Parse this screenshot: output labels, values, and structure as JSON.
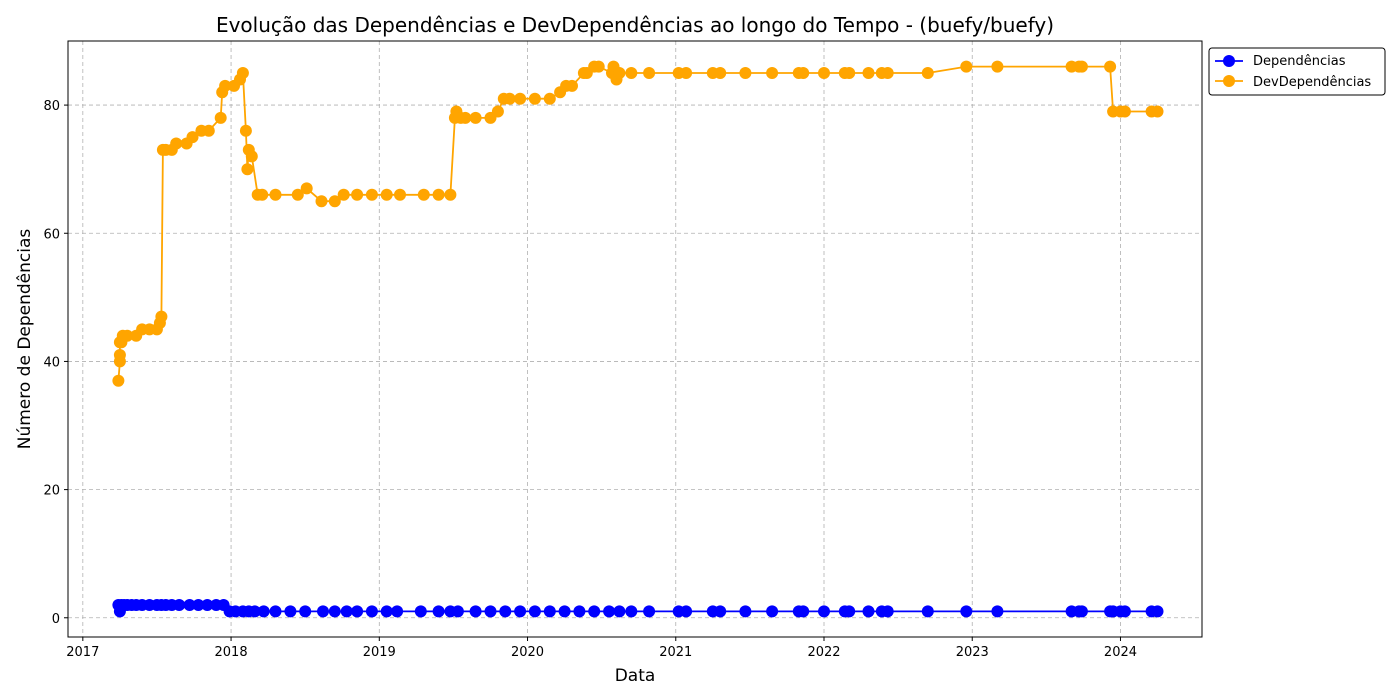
{
  "chart_data": {
    "type": "line",
    "title": "Evolução das Dependências e DevDependências ao longo do Tempo - (buefy/buefy)",
    "xlabel": "Data",
    "ylabel": "Número de Dependências",
    "xlim": [
      2016.9,
      2024.55
    ],
    "ylim": [
      -3,
      90
    ],
    "xticks": [
      2017,
      2018,
      2019,
      2020,
      2021,
      2022,
      2023,
      2024
    ],
    "yticks": [
      0,
      20,
      40,
      60,
      80
    ],
    "grid": true,
    "legend_position": "top-right",
    "series": [
      {
        "name": "Dependências",
        "color": "#0000ff",
        "x": [
          2017.24,
          2017.25,
          2017.26,
          2017.28,
          2017.3,
          2017.33,
          2017.36,
          2017.4,
          2017.45,
          2017.5,
          2017.53,
          2017.56,
          2017.6,
          2017.65,
          2017.72,
          2017.78,
          2017.84,
          2017.9,
          2017.95,
          2017.99,
          2018.03,
          2018.08,
          2018.12,
          2018.16,
          2018.22,
          2018.3,
          2018.4,
          2018.5,
          2018.62,
          2018.7,
          2018.78,
          2018.85,
          2018.95,
          2019.05,
          2019.12,
          2019.28,
          2019.4,
          2019.48,
          2019.53,
          2019.65,
          2019.75,
          2019.85,
          2019.95,
          2020.05,
          2020.15,
          2020.25,
          2020.35,
          2020.45,
          2020.55,
          2020.62,
          2020.7,
          2020.82,
          2021.02,
          2021.07,
          2021.25,
          2021.3,
          2021.47,
          2021.65,
          2021.83,
          2021.86,
          2022.0,
          2022.14,
          2022.17,
          2022.3,
          2022.39,
          2022.43,
          2022.7,
          2022.96,
          2023.17,
          2023.67,
          2023.72,
          2023.74,
          2023.93,
          2023.95,
          2024.0,
          2024.03,
          2024.21,
          2024.25
        ],
        "y": [
          2,
          1,
          2,
          2,
          2,
          2,
          2,
          2,
          2,
          2,
          2,
          2,
          2,
          2,
          2,
          2,
          2,
          2,
          2,
          1,
          1,
          1,
          1,
          1,
          1,
          1,
          1,
          1,
          1,
          1,
          1,
          1,
          1,
          1,
          1,
          1,
          1,
          1,
          1,
          1,
          1,
          1,
          1,
          1,
          1,
          1,
          1,
          1,
          1,
          1,
          1,
          1,
          1,
          1,
          1,
          1,
          1,
          1,
          1,
          1,
          1,
          1,
          1,
          1,
          1,
          1,
          1,
          1,
          1,
          1,
          1,
          1,
          1,
          1,
          1,
          1,
          1,
          1
        ]
      },
      {
        "name": "DevDependências",
        "color": "#ffa500",
        "x": [
          2017.24,
          2017.25,
          2017.25,
          2017.25,
          2017.26,
          2017.27,
          2017.3,
          2017.36,
          2017.4,
          2017.45,
          2017.5,
          2017.52,
          2017.53,
          2017.54,
          2017.56,
          2017.6,
          2017.63,
          2017.7,
          2017.74,
          2017.8,
          2017.85,
          2017.93,
          2017.94,
          2017.96,
          2018.02,
          2018.06,
          2018.08,
          2018.1,
          2018.11,
          2018.12,
          2018.14,
          2018.18,
          2018.21,
          2018.3,
          2018.45,
          2018.51,
          2018.61,
          2018.7,
          2018.76,
          2018.85,
          2018.95,
          2019.05,
          2019.14,
          2019.3,
          2019.4,
          2019.48,
          2019.51,
          2019.52,
          2019.55,
          2019.58,
          2019.65,
          2019.75,
          2019.8,
          2019.84,
          2019.88,
          2019.95,
          2020.05,
          2020.15,
          2020.22,
          2020.26,
          2020.3,
          2020.38,
          2020.4,
          2020.45,
          2020.48,
          2020.57,
          2020.58,
          2020.6,
          2020.62,
          2020.7,
          2020.82,
          2021.02,
          2021.07,
          2021.25,
          2021.3,
          2021.47,
          2021.65,
          2021.83,
          2021.86,
          2022.0,
          2022.14,
          2022.17,
          2022.3,
          2022.39,
          2022.43,
          2022.7,
          2022.96,
          2023.17,
          2023.67,
          2023.72,
          2023.74,
          2023.93,
          2023.95,
          2024.0,
          2024.03,
          2024.21,
          2024.25
        ],
        "y": [
          37,
          40,
          41,
          43,
          43,
          44,
          44,
          44,
          45,
          45,
          45,
          46,
          47,
          73,
          73,
          73,
          74,
          74,
          75,
          76,
          76,
          78,
          82,
          83,
          83,
          84,
          85,
          76,
          70,
          73,
          72,
          66,
          66,
          66,
          66,
          67,
          65,
          65,
          66,
          66,
          66,
          66,
          66,
          66,
          66,
          66,
          78,
          79,
          78,
          78,
          78,
          78,
          79,
          81,
          81,
          81,
          81,
          81,
          82,
          83,
          83,
          85,
          85,
          86,
          86,
          85,
          86,
          84,
          85,
          85,
          85,
          85,
          85,
          85,
          85,
          85,
          85,
          85,
          85,
          85,
          85,
          85,
          85,
          85,
          85,
          85,
          86,
          86,
          86,
          86,
          86,
          86,
          79,
          79,
          79,
          79,
          79
        ]
      }
    ]
  }
}
